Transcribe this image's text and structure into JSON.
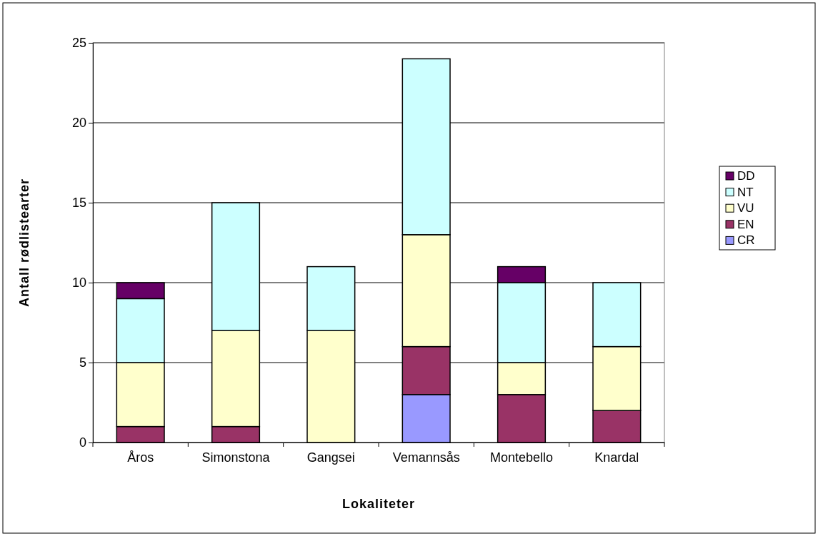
{
  "chart_data": {
    "type": "bar",
    "stacked": true,
    "xlabel": "Lokaliteter",
    "ylabel": "Antall rødlistearter",
    "categories": [
      "Åros",
      "Simonstona",
      "Gangsei",
      "Vemannsås",
      "Montebello",
      "Knardal"
    ],
    "series": [
      {
        "name": "CR",
        "color": "#9999ff",
        "values": [
          0,
          0,
          0,
          3,
          0,
          0
        ]
      },
      {
        "name": "EN",
        "color": "#993366",
        "values": [
          1,
          1,
          0,
          3,
          3,
          2
        ]
      },
      {
        "name": "VU",
        "color": "#ffffcc",
        "values": [
          4,
          6,
          7,
          7,
          2,
          4
        ]
      },
      {
        "name": "NT",
        "color": "#ccffff",
        "values": [
          4,
          8,
          4,
          11,
          5,
          4
        ]
      },
      {
        "name": "DD",
        "color": "#660066",
        "values": [
          1,
          0,
          0,
          0,
          1,
          0
        ]
      }
    ],
    "ylim": [
      0,
      25
    ],
    "yticks": [
      0,
      5,
      10,
      15,
      20,
      25
    ],
    "grid": "y",
    "legend": "right"
  }
}
